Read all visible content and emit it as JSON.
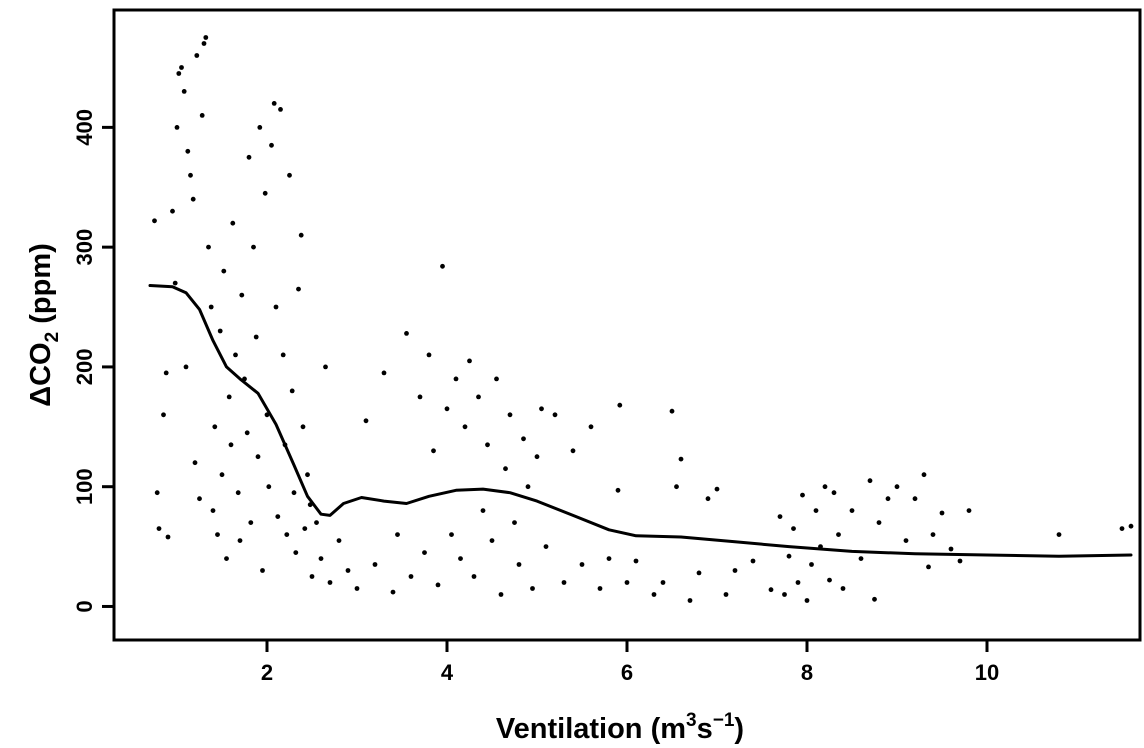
{
  "chart_data": {
    "type": "scatter",
    "title": "",
    "xlabel": {
      "base": "Ventilation (m",
      "sup1": "3",
      "mid": "s",
      "sup2": "−1",
      "end": ")"
    },
    "ylabel": {
      "pre": "ΔCO",
      "sub": "2",
      "post": " (ppm)"
    },
    "xlim": [
      0.3,
      11.7
    ],
    "ylim": [
      -28,
      498
    ],
    "x_ticks": [
      2,
      4,
      6,
      8,
      10
    ],
    "y_ticks": [
      0,
      100,
      200,
      300,
      400
    ],
    "x_tick_labels": [
      "2",
      "4",
      "6",
      "8",
      "10"
    ],
    "y_tick_labels": [
      "0",
      "100",
      "200",
      "300",
      "400"
    ],
    "grid": false,
    "legend": "none",
    "colors": {
      "points": "#000000",
      "line": "#000000",
      "frame": "#000000"
    },
    "series": [
      {
        "kind": "points",
        "values": [
          [
            0.75,
            322
          ],
          [
            0.78,
            95
          ],
          [
            0.8,
            65
          ],
          [
            0.85,
            160
          ],
          [
            0.88,
            195
          ],
          [
            0.9,
            58
          ],
          [
            0.95,
            330
          ],
          [
            0.98,
            270
          ],
          [
            1.0,
            400
          ],
          [
            1.02,
            445
          ],
          [
            1.05,
            450
          ],
          [
            1.08,
            430
          ],
          [
            1.1,
            200
          ],
          [
            1.12,
            380
          ],
          [
            1.15,
            360
          ],
          [
            1.18,
            340
          ],
          [
            1.2,
            120
          ],
          [
            1.22,
            460
          ],
          [
            1.25,
            90
          ],
          [
            1.28,
            410
          ],
          [
            1.3,
            470
          ],
          [
            1.32,
            475
          ],
          [
            1.35,
            300
          ],
          [
            1.38,
            250
          ],
          [
            1.4,
            80
          ],
          [
            1.42,
            150
          ],
          [
            1.45,
            60
          ],
          [
            1.48,
            230
          ],
          [
            1.5,
            110
          ],
          [
            1.52,
            280
          ],
          [
            1.55,
            40
          ],
          [
            1.58,
            175
          ],
          [
            1.6,
            135
          ],
          [
            1.62,
            320
          ],
          [
            1.65,
            210
          ],
          [
            1.68,
            95
          ],
          [
            1.7,
            55
          ],
          [
            1.72,
            260
          ],
          [
            1.75,
            190
          ],
          [
            1.78,
            145
          ],
          [
            1.8,
            375
          ],
          [
            1.82,
            70
          ],
          [
            1.85,
            300
          ],
          [
            1.88,
            225
          ],
          [
            1.9,
            125
          ],
          [
            1.92,
            400
          ],
          [
            1.95,
            30
          ],
          [
            1.98,
            345
          ],
          [
            2.0,
            160
          ],
          [
            2.02,
            100
          ],
          [
            2.05,
            385
          ],
          [
            2.08,
            420
          ],
          [
            2.1,
            250
          ],
          [
            2.12,
            75
          ],
          [
            2.15,
            415
          ],
          [
            2.18,
            210
          ],
          [
            2.2,
            135
          ],
          [
            2.22,
            60
          ],
          [
            2.25,
            360
          ],
          [
            2.28,
            180
          ],
          [
            2.3,
            95
          ],
          [
            2.32,
            45
          ],
          [
            2.35,
            265
          ],
          [
            2.38,
            310
          ],
          [
            2.4,
            150
          ],
          [
            2.42,
            65
          ],
          [
            2.45,
            110
          ],
          [
            2.48,
            85
          ],
          [
            2.5,
            25
          ],
          [
            2.55,
            70
          ],
          [
            2.6,
            40
          ],
          [
            2.65,
            200
          ],
          [
            2.7,
            20
          ],
          [
            2.8,
            55
          ],
          [
            2.9,
            30
          ],
          [
            3.0,
            15
          ],
          [
            3.1,
            155
          ],
          [
            3.2,
            35
          ],
          [
            3.3,
            195
          ],
          [
            3.4,
            12
          ],
          [
            3.45,
            60
          ],
          [
            3.55,
            228
          ],
          [
            3.6,
            25
          ],
          [
            3.7,
            175
          ],
          [
            3.75,
            45
          ],
          [
            3.8,
            210
          ],
          [
            3.85,
            130
          ],
          [
            3.9,
            18
          ],
          [
            3.95,
            284
          ],
          [
            4.0,
            165
          ],
          [
            4.05,
            60
          ],
          [
            4.1,
            190
          ],
          [
            4.15,
            40
          ],
          [
            4.2,
            150
          ],
          [
            4.25,
            205
          ],
          [
            4.3,
            25
          ],
          [
            4.35,
            175
          ],
          [
            4.4,
            80
          ],
          [
            4.45,
            135
          ],
          [
            4.5,
            55
          ],
          [
            4.55,
            190
          ],
          [
            4.6,
            10
          ],
          [
            4.65,
            115
          ],
          [
            4.7,
            160
          ],
          [
            4.75,
            70
          ],
          [
            4.8,
            35
          ],
          [
            4.85,
            140
          ],
          [
            4.9,
            100
          ],
          [
            4.95,
            15
          ],
          [
            5.0,
            125
          ],
          [
            5.05,
            165
          ],
          [
            5.1,
            50
          ],
          [
            5.2,
            160
          ],
          [
            5.3,
            20
          ],
          [
            5.4,
            130
          ],
          [
            5.5,
            35
          ],
          [
            5.6,
            150
          ],
          [
            5.7,
            15
          ],
          [
            5.8,
            40
          ],
          [
            5.9,
            97
          ],
          [
            5.92,
            168
          ],
          [
            6.0,
            20
          ],
          [
            6.1,
            38
          ],
          [
            6.3,
            10
          ],
          [
            6.4,
            20
          ],
          [
            6.5,
            163
          ],
          [
            6.55,
            100
          ],
          [
            6.6,
            123
          ],
          [
            6.7,
            5
          ],
          [
            6.8,
            28
          ],
          [
            6.9,
            90
          ],
          [
            7.0,
            98
          ],
          [
            7.1,
            10
          ],
          [
            7.2,
            30
          ],
          [
            7.4,
            38
          ],
          [
            7.6,
            14
          ],
          [
            7.7,
            75
          ],
          [
            7.75,
            10
          ],
          [
            7.8,
            42
          ],
          [
            7.85,
            65
          ],
          [
            7.9,
            20
          ],
          [
            7.95,
            93
          ],
          [
            8.0,
            5
          ],
          [
            8.05,
            35
          ],
          [
            8.1,
            80
          ],
          [
            8.15,
            50
          ],
          [
            8.2,
            100
          ],
          [
            8.25,
            22
          ],
          [
            8.3,
            95
          ],
          [
            8.35,
            60
          ],
          [
            8.4,
            15
          ],
          [
            8.5,
            80
          ],
          [
            8.6,
            40
          ],
          [
            8.7,
            105
          ],
          [
            8.75,
            6
          ],
          [
            8.8,
            70
          ],
          [
            8.9,
            90
          ],
          [
            9.0,
            100
          ],
          [
            9.1,
            55
          ],
          [
            9.2,
            90
          ],
          [
            9.3,
            110
          ],
          [
            9.35,
            33
          ],
          [
            9.4,
            60
          ],
          [
            9.5,
            78
          ],
          [
            9.6,
            48
          ],
          [
            9.7,
            38
          ],
          [
            9.8,
            80
          ],
          [
            10.8,
            60
          ],
          [
            11.5,
            65
          ],
          [
            11.6,
            67
          ]
        ]
      },
      {
        "kind": "line",
        "values": [
          [
            0.7,
            268
          ],
          [
            0.95,
            267
          ],
          [
            1.1,
            262
          ],
          [
            1.25,
            248
          ],
          [
            1.4,
            222
          ],
          [
            1.55,
            200
          ],
          [
            1.7,
            190
          ],
          [
            1.9,
            178
          ],
          [
            2.1,
            152
          ],
          [
            2.3,
            118
          ],
          [
            2.45,
            92
          ],
          [
            2.6,
            77
          ],
          [
            2.7,
            76
          ],
          [
            2.85,
            86
          ],
          [
            3.05,
            91
          ],
          [
            3.3,
            88
          ],
          [
            3.55,
            86
          ],
          [
            3.8,
            92
          ],
          [
            4.1,
            97
          ],
          [
            4.4,
            98
          ],
          [
            4.7,
            95
          ],
          [
            5.0,
            88
          ],
          [
            5.4,
            76
          ],
          [
            5.8,
            64
          ],
          [
            6.1,
            59
          ],
          [
            6.6,
            58
          ],
          [
            7.2,
            54
          ],
          [
            7.8,
            50
          ],
          [
            8.5,
            46
          ],
          [
            9.2,
            44
          ],
          [
            10.0,
            43
          ],
          [
            10.8,
            42
          ],
          [
            11.6,
            43
          ]
        ]
      }
    ]
  }
}
